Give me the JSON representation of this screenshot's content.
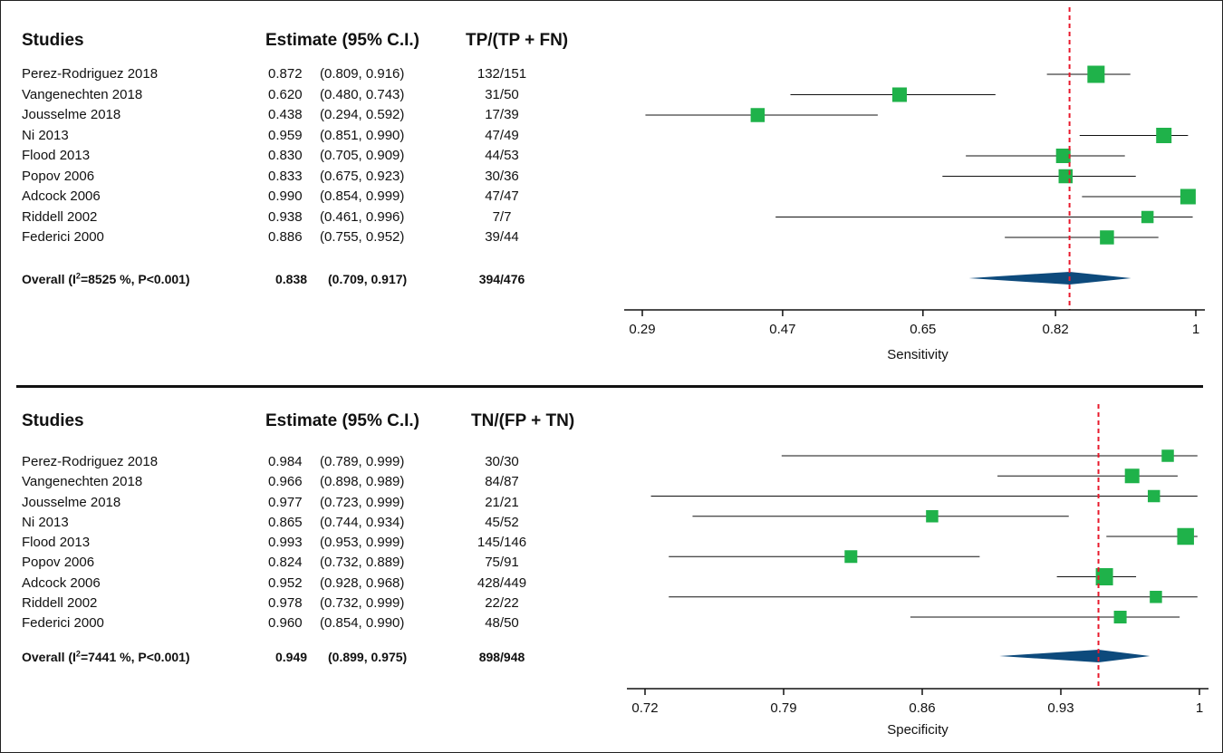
{
  "chart_data": [
    {
      "type": "forest",
      "header": {
        "studies": "Studies",
        "estimate": "Estimate (95% C.I.)",
        "fraction": "TP/(TP + FN)"
      },
      "studies": [
        {
          "name": "Perez-Rodriguez 2018",
          "estimate": 0.872,
          "lower": 0.809,
          "upper": 0.916,
          "est_text": "0.872",
          "ci_text": "(0.809, 0.916)",
          "fraction": "132/151",
          "weight": 1.0
        },
        {
          "name": "Vangenechten 2018",
          "estimate": 0.62,
          "lower": 0.48,
          "upper": 0.743,
          "est_text": "0.620",
          "ci_text": "(0.480, 0.743)",
          "fraction": "31/50",
          "weight": 0.7
        },
        {
          "name": "Jousselme 2018",
          "estimate": 0.438,
          "lower": 0.294,
          "upper": 0.592,
          "est_text": "0.438",
          "ci_text": "(0.294, 0.592)",
          "fraction": "17/39",
          "weight": 0.65
        },
        {
          "name": "Ni 2013",
          "estimate": 0.959,
          "lower": 0.851,
          "upper": 0.99,
          "est_text": "0.959",
          "ci_text": "(0.851, 0.990)",
          "fraction": "47/49",
          "weight": 0.8
        },
        {
          "name": "Flood 2013",
          "estimate": 0.83,
          "lower": 0.705,
          "upper": 0.909,
          "est_text": "0.830",
          "ci_text": "(0.705, 0.909)",
          "fraction": "44/53",
          "weight": 0.7
        },
        {
          "name": "Popov 2006",
          "estimate": 0.833,
          "lower": 0.675,
          "upper": 0.923,
          "est_text": "0.833",
          "ci_text": "(0.675, 0.923)",
          "fraction": "30/36",
          "weight": 0.65
        },
        {
          "name": "Adcock 2006",
          "estimate": 0.99,
          "lower": 0.854,
          "upper": 0.999,
          "est_text": "0.990",
          "ci_text": "(0.854, 0.999)",
          "fraction": "47/47",
          "weight": 0.8
        },
        {
          "name": "Riddell 2002",
          "estimate": 0.938,
          "lower": 0.461,
          "upper": 0.996,
          "est_text": "0.938",
          "ci_text": "(0.461, 0.996)",
          "fraction": "7/7",
          "weight": 0.45
        },
        {
          "name": "Federici 2000",
          "estimate": 0.886,
          "lower": 0.755,
          "upper": 0.952,
          "est_text": "0.886",
          "ci_text": "(0.755, 0.952)",
          "fraction": "39/44",
          "weight": 0.65
        }
      ],
      "overall": {
        "label_prefix": "Overall (I",
        "label_sup": "2",
        "label_suffix": "=8525 %, P<0.001)",
        "estimate": 0.838,
        "lower": 0.709,
        "upper": 0.917,
        "est_text": "0.838",
        "ci_text": "(0.709, 0.917)",
        "fraction": "394/476"
      },
      "xaxis": {
        "title": "Sensitivity",
        "ticks": [
          0.29,
          0.47,
          0.65,
          0.82,
          1
        ],
        "tick_labels": [
          "0.29",
          "0.47",
          "0.65",
          "0.82",
          "1"
        ],
        "xlim": [
          0.29,
          1
        ]
      },
      "reference_line": 0.838,
      "colors": {
        "square": "#1fb24a",
        "diamond": "#0d4a7c",
        "refline": "#e8192c"
      }
    },
    {
      "type": "forest",
      "header": {
        "studies": "Studies",
        "estimate": "Estimate (95% C.I.)",
        "fraction": "TN/(FP + TN)"
      },
      "studies": [
        {
          "name": "Perez-Rodriguez 2018",
          "estimate": 0.984,
          "lower": 0.789,
          "upper": 0.999,
          "est_text": "0.984",
          "ci_text": "(0.789, 0.999)",
          "fraction": "30/30",
          "weight": 0.45
        },
        {
          "name": "Vangenechten 2018",
          "estimate": 0.966,
          "lower": 0.898,
          "upper": 0.989,
          "est_text": "0.966",
          "ci_text": "(0.898, 0.989)",
          "fraction": "84/87",
          "weight": 0.7
        },
        {
          "name": "Jousselme 2018",
          "estimate": 0.977,
          "lower": 0.723,
          "upper": 0.999,
          "est_text": "0.977",
          "ci_text": "(0.723, 0.999)",
          "fraction": "21/21",
          "weight": 0.45
        },
        {
          "name": "Ni 2013",
          "estimate": 0.865,
          "lower": 0.744,
          "upper": 0.934,
          "est_text": "0.865",
          "ci_text": "(0.744, 0.934)",
          "fraction": "45/52",
          "weight": 0.45
        },
        {
          "name": "Flood 2013",
          "estimate": 0.993,
          "lower": 0.953,
          "upper": 0.999,
          "est_text": "0.993",
          "ci_text": "(0.953, 0.999)",
          "fraction": "145/146",
          "weight": 0.95
        },
        {
          "name": "Popov 2006",
          "estimate": 0.824,
          "lower": 0.732,
          "upper": 0.889,
          "est_text": "0.824",
          "ci_text": "(0.732, 0.889)",
          "fraction": "75/91",
          "weight": 0.5
        },
        {
          "name": "Adcock 2006",
          "estimate": 0.952,
          "lower": 0.928,
          "upper": 0.968,
          "est_text": "0.952",
          "ci_text": "(0.928, 0.968)",
          "fraction": "428/449",
          "weight": 1.0
        },
        {
          "name": "Riddell 2002",
          "estimate": 0.978,
          "lower": 0.732,
          "upper": 0.999,
          "est_text": "0.978",
          "ci_text": "(0.732, 0.999)",
          "fraction": "22/22",
          "weight": 0.45
        },
        {
          "name": "Federici 2000",
          "estimate": 0.96,
          "lower": 0.854,
          "upper": 0.99,
          "est_text": "0.960",
          "ci_text": "(0.854, 0.990)",
          "fraction": "48/50",
          "weight": 0.5
        }
      ],
      "overall": {
        "label_prefix": "Overall (I",
        "label_sup": "2",
        "label_suffix": "=7441 %, P<0.001)",
        "estimate": 0.949,
        "lower": 0.899,
        "upper": 0.975,
        "est_text": "0.949",
        "ci_text": "(0.899, 0.975)",
        "fraction": "898/948"
      },
      "xaxis": {
        "title": "Specificity",
        "ticks": [
          0.72,
          0.79,
          0.86,
          0.93,
          1
        ],
        "tick_labels": [
          "0.72",
          "0.79",
          "0.86",
          "0.93",
          "1"
        ],
        "xlim": [
          0.72,
          1
        ]
      },
      "reference_line": 0.949,
      "colors": {
        "square": "#1fb24a",
        "diamond": "#0d4a7c",
        "refline": "#e8192c"
      }
    }
  ]
}
